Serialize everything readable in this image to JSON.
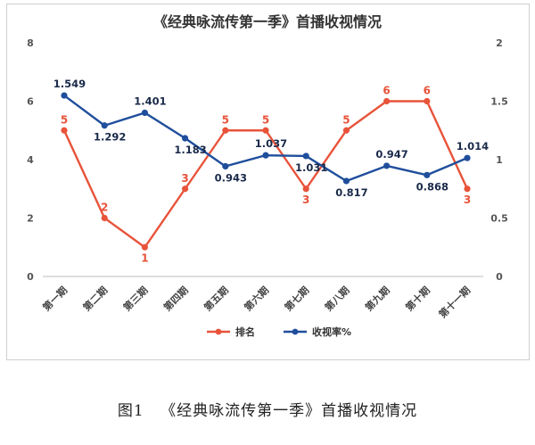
{
  "chart_data": {
    "type": "line",
    "title": "《经典咏流传第一季》首播收视情况",
    "categories": [
      "第一期",
      "第二期",
      "第三期",
      "第四期",
      "第五期",
      "第六期",
      "第七期",
      "第八期",
      "第九期",
      "第十期",
      "第十一期"
    ],
    "series": [
      {
        "name": "排名",
        "axis": "left",
        "color": "#e8533a",
        "values": [
          5,
          2,
          1,
          3,
          5,
          5,
          3,
          5,
          6,
          6,
          3
        ]
      },
      {
        "name": "收视率%",
        "axis": "right",
        "color": "#1f4e9c",
        "values": [
          1.549,
          1.292,
          1.401,
          1.183,
          0.943,
          1.037,
          1.031,
          0.817,
          0.947,
          0.868,
          1.014
        ]
      }
    ],
    "y_left": {
      "ticks": [
        "0",
        "2",
        "4",
        "6",
        "8"
      ],
      "range": [
        0,
        8
      ]
    },
    "y_right": {
      "ticks": [
        "0",
        "0.5",
        "1",
        "1.5",
        "2"
      ],
      "range": [
        0,
        2
      ]
    },
    "grid": false,
    "legend": "bottom"
  },
  "caption": {
    "figure": "图1",
    "text": "《经典咏流传第一季》首播收视情况"
  }
}
